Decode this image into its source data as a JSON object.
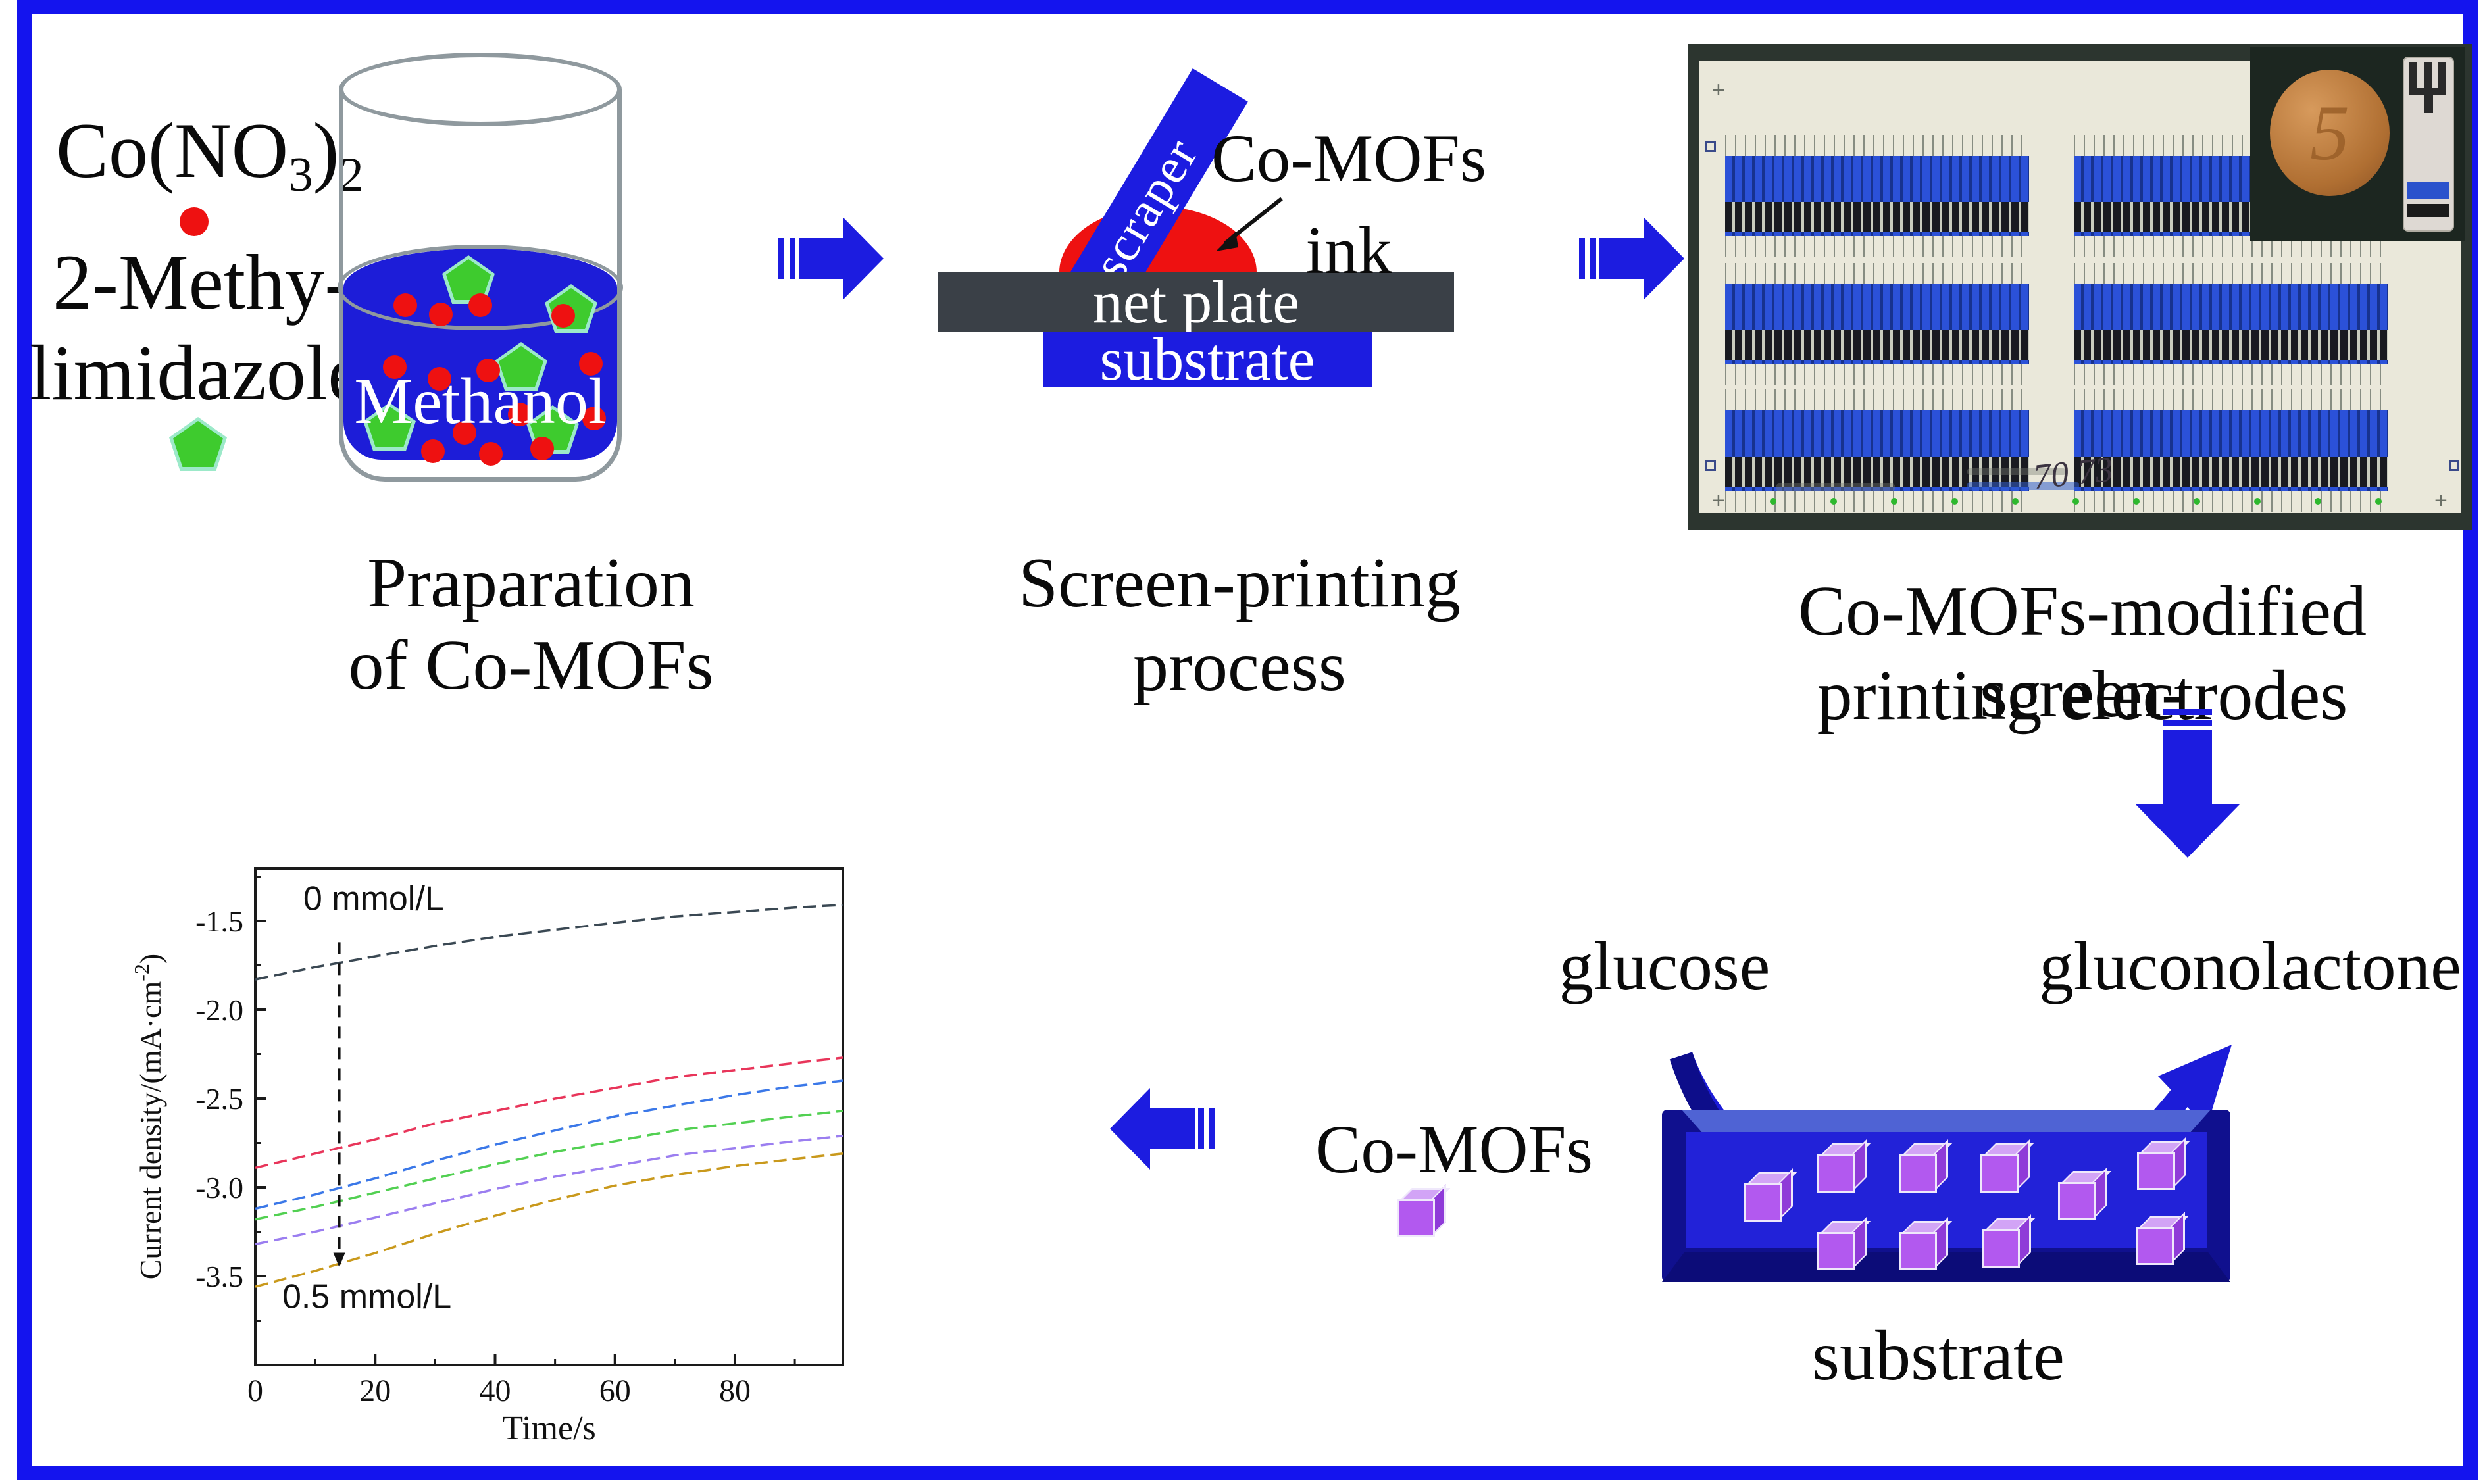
{
  "colors": {
    "accent_blue": "#1c1ce0",
    "cobalt_red": "#ee1111",
    "pentagon_green": "#3ecb2e",
    "net_plate_gray": "#3a4047",
    "cube_purple": "#b259ef",
    "border_blue": "#1414ee"
  },
  "section1": {
    "co_pre": "Co(NO",
    "co_sub1": "3",
    "co_close": ")",
    "co_sub2": "2",
    "reagent2_line1": "2-Methy-",
    "reagent2_line2": "limidazole",
    "solvent": "Methanol",
    "caption_line1": "Praparation",
    "caption_line2": "of Co-MOFs"
  },
  "section2": {
    "scraper_label": "scraper",
    "ink_label_line1": "Co-MOFs",
    "ink_label_line2": "ink",
    "net_plate_label": "net plate",
    "substrate_label": "substrate",
    "caption_line1": "Screen-printing",
    "caption_line2": "process"
  },
  "section3": {
    "caption_line1": "Co-MOFs-modified screen-",
    "caption_line2": "printing electrodes",
    "coin_digit": "5",
    "handwritten_note": "70 73"
  },
  "section4": {
    "reactant_label": "glucose",
    "product_label": "gluconolactone",
    "catalyst_label": "Co-MOFs",
    "substrate_label": "substrate"
  },
  "chart_data": {
    "type": "line",
    "title": "",
    "xlabel": "Time/s",
    "ylabel": "Current density/(mA·cm⁻²)",
    "ylabel_parts": [
      "Current density/(mA·cm",
      "-2",
      ")"
    ],
    "xlim": [
      0,
      98
    ],
    "ylim": [
      -4.0,
      -1.2
    ],
    "xticks": [
      0,
      20,
      40,
      60,
      80
    ],
    "yticks": [
      -1.5,
      -2.0,
      -2.5,
      -3.0,
      -3.5
    ],
    "grid": false,
    "legend_position": "none",
    "annotations": [
      {
        "text": "0 mmol/L",
        "x": 8,
        "y": -1.38
      },
      {
        "text": "0.5 mmol/L",
        "x": 4.5,
        "y": -3.62
      }
    ],
    "arrow": {
      "x": 14,
      "y_from": -1.62,
      "y_to": -3.45
    },
    "x": [
      0,
      10,
      20,
      30,
      40,
      50,
      60,
      70,
      80,
      90,
      98
    ],
    "series": [
      {
        "name": "0 mmol/L",
        "color": "#3a4853",
        "values": [
          -1.83,
          -1.76,
          -1.7,
          -1.64,
          -1.59,
          -1.55,
          -1.51,
          -1.475,
          -1.45,
          -1.425,
          -1.41
        ]
      },
      {
        "name": "",
        "color": "#e8355a",
        "values": [
          -2.89,
          -2.81,
          -2.73,
          -2.64,
          -2.57,
          -2.5,
          -2.44,
          -2.38,
          -2.34,
          -2.3,
          -2.27
        ]
      },
      {
        "name": "",
        "color": "#3b78e8",
        "values": [
          -3.12,
          -3.04,
          -2.95,
          -2.85,
          -2.76,
          -2.68,
          -2.6,
          -2.54,
          -2.48,
          -2.43,
          -2.4
        ]
      },
      {
        "name": "",
        "color": "#52d052",
        "values": [
          -3.18,
          -3.11,
          -3.03,
          -2.95,
          -2.87,
          -2.8,
          -2.74,
          -2.68,
          -2.64,
          -2.6,
          -2.57
        ]
      },
      {
        "name": "",
        "color": "#9b7ef0",
        "values": [
          -3.32,
          -3.25,
          -3.17,
          -3.09,
          -3.01,
          -2.94,
          -2.88,
          -2.82,
          -2.78,
          -2.74,
          -2.71
        ]
      },
      {
        "name": "0.5 mmol/L",
        "color": "#c9991c",
        "values": [
          -3.56,
          -3.47,
          -3.37,
          -3.26,
          -3.16,
          -3.07,
          -2.99,
          -2.93,
          -2.88,
          -2.84,
          -2.81
        ]
      }
    ]
  }
}
